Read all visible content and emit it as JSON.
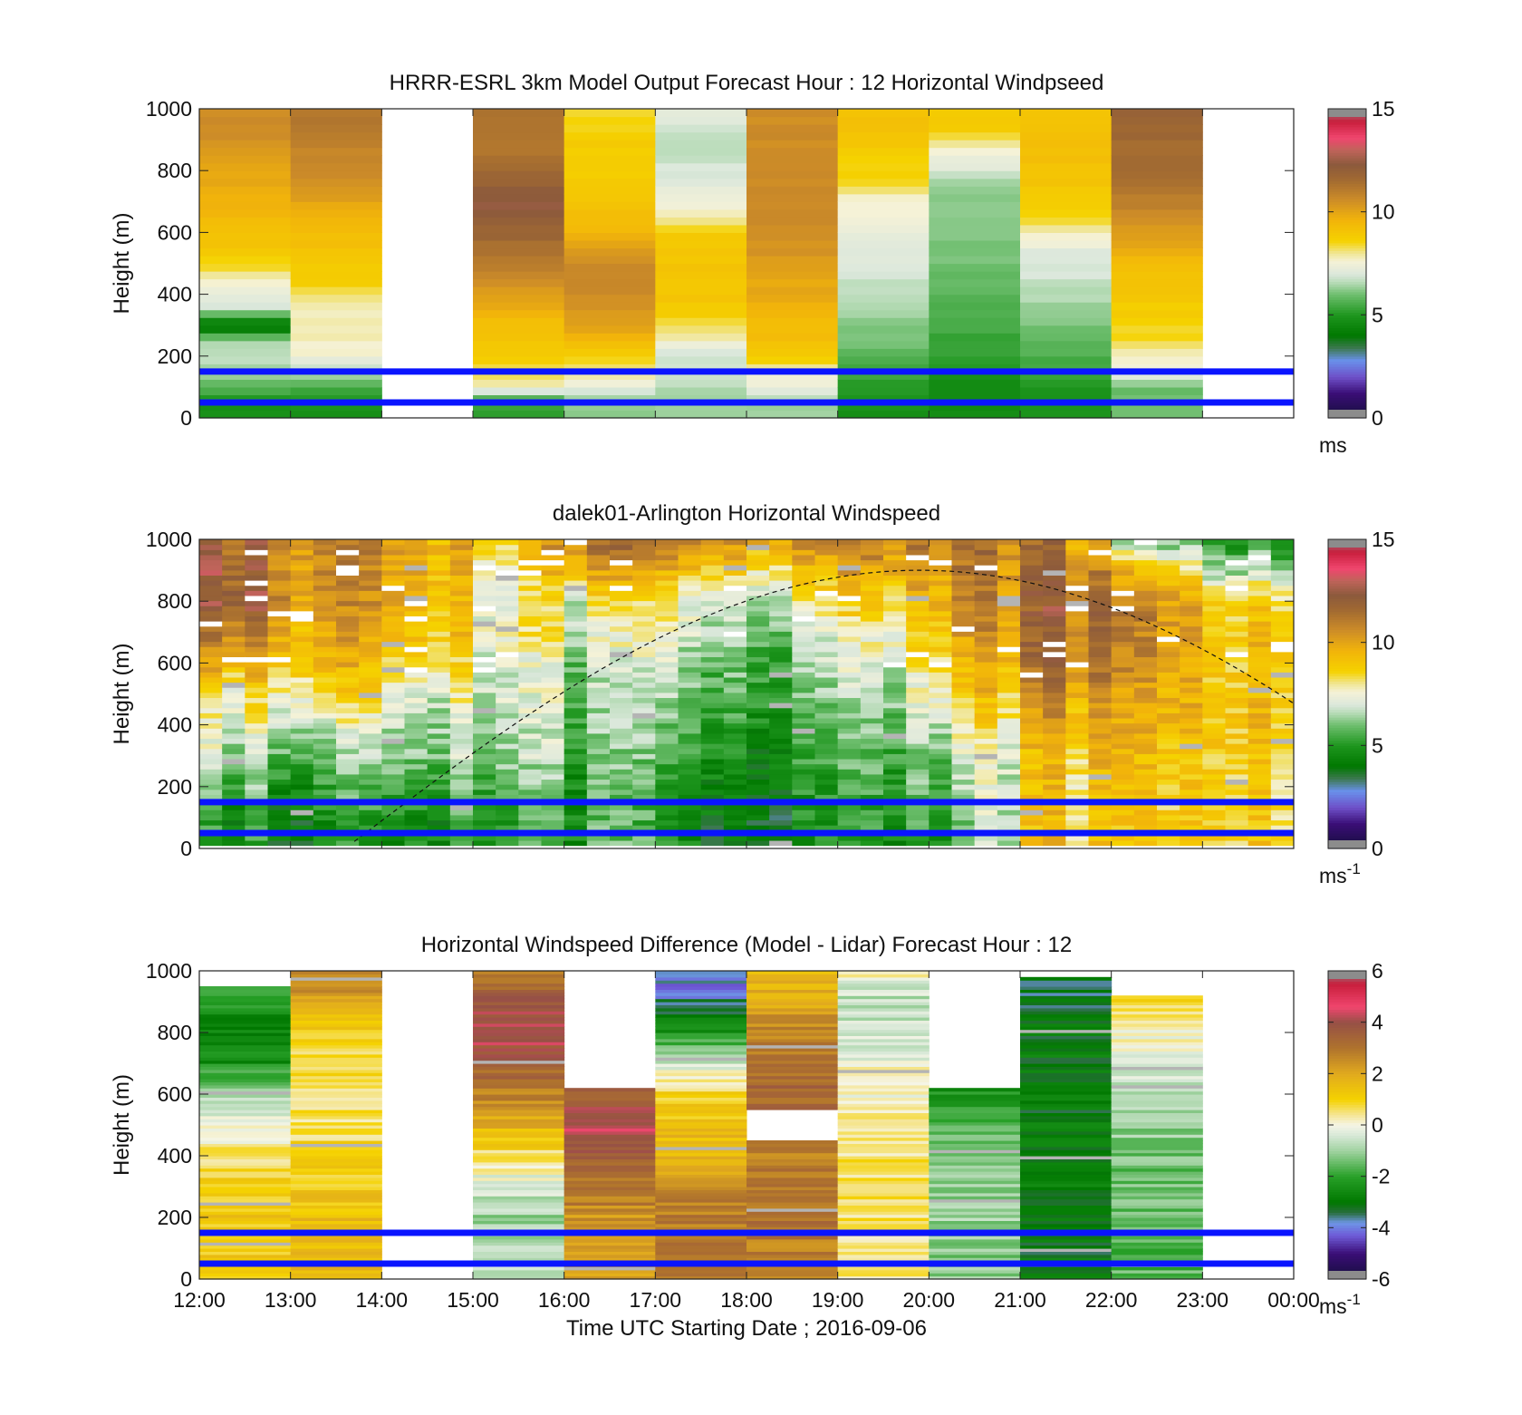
{
  "chart_data": [
    {
      "type": "heatmap",
      "id": "model",
      "title": "HRRR-ESRL 3km Model Output   Forecast Hour : 12 Horizontal Windpseed",
      "ylabel": "Height (m)",
      "ylim": [
        0,
        1000
      ],
      "yticks": [
        0,
        200,
        400,
        600,
        800,
        1000
      ],
      "xlim_hours": [
        12,
        24
      ],
      "colorbar": {
        "min": 0,
        "max": 15,
        "ticks": [
          0,
          5,
          10,
          15
        ],
        "unit": "ms"
      },
      "reference_lines_m": [
        150,
        50
      ],
      "hour_bins": [
        12,
        13,
        14,
        15,
        16,
        17,
        18,
        19,
        20,
        21,
        22,
        23
      ],
      "heights_m": [
        50,
        100,
        150,
        200,
        250,
        300,
        350,
        400,
        450,
        500,
        550,
        600,
        650,
        700,
        750,
        800,
        850,
        900,
        950,
        1000
      ],
      "profiles_ms": [
        [
          4.8,
          5.6,
          6.5,
          6.6,
          6.4,
          3.6,
          6.8,
          7.4,
          7.6,
          8.6,
          9.0,
          9.2,
          9.4,
          9.6,
          9.8,
          10.0,
          10.2,
          10.4,
          10.6,
          10.6
        ],
        [
          4.8,
          5.6,
          6.5,
          7.6,
          7.8,
          7.8,
          7.8,
          8.2,
          8.8,
          9.0,
          9.2,
          9.4,
          9.6,
          10.0,
          10.4,
          10.6,
          10.8,
          11.0,
          11.2,
          11.2
        ],
        [
          null,
          null,
          null,
          null,
          null,
          null,
          null,
          null,
          null,
          null,
          null,
          null,
          null,
          null,
          null,
          null,
          null,
          null,
          null,
          null
        ],
        [
          5.2,
          7.6,
          8.4,
          8.8,
          9.0,
          9.2,
          9.6,
          10.2,
          10.6,
          11.0,
          11.4,
          11.8,
          12.2,
          12.4,
          12.0,
          11.6,
          11.4,
          11.2,
          11.2,
          11.2
        ],
        [
          6.2,
          7.4,
          8.0,
          8.6,
          9.4,
          10.0,
          10.4,
          10.6,
          10.8,
          10.6,
          10.2,
          9.6,
          9.2,
          9.0,
          8.8,
          8.8,
          8.8,
          8.8,
          8.6,
          8.4
        ],
        [
          6.5,
          6.6,
          6.8,
          6.9,
          7.6,
          8.4,
          8.8,
          9.0,
          9.0,
          9.0,
          9.0,
          8.8,
          7.8,
          7.4,
          7.2,
          7.0,
          6.8,
          6.6,
          7.0,
          7.2
        ],
        [
          6.4,
          7.4,
          7.6,
          8.8,
          9.2,
          9.4,
          9.6,
          9.8,
          10.0,
          10.2,
          10.4,
          10.4,
          10.6,
          10.6,
          10.6,
          10.6,
          10.6,
          10.6,
          10.6,
          10.6
        ],
        [
          4.8,
          5.0,
          5.4,
          5.8,
          6.0,
          6.2,
          6.4,
          6.6,
          6.8,
          7.0,
          7.2,
          7.4,
          7.6,
          7.6,
          8.4,
          8.6,
          8.8,
          9.0,
          9.2,
          9.2
        ],
        [
          4.6,
          4.6,
          5.0,
          5.2,
          5.4,
          5.4,
          5.6,
          5.8,
          5.8,
          6.0,
          6.0,
          6.2,
          6.2,
          6.2,
          6.4,
          7.0,
          7.4,
          8.4,
          8.8,
          8.8
        ],
        [
          4.8,
          4.8,
          5.4,
          5.6,
          5.8,
          6.0,
          6.4,
          6.6,
          6.8,
          7.0,
          7.2,
          7.8,
          8.4,
          8.8,
          9.0,
          9.2,
          9.2,
          9.2,
          9.2,
          9.2
        ],
        [
          6.0,
          6.0,
          7.6,
          7.8,
          8.4,
          8.6,
          8.8,
          9.0,
          9.2,
          9.4,
          9.8,
          10.2,
          10.6,
          11.0,
          11.4,
          11.6,
          11.6,
          11.6,
          11.8,
          11.8
        ],
        [
          null,
          null,
          null,
          null,
          null,
          null,
          null,
          null,
          null,
          null,
          null,
          null,
          null,
          null,
          null,
          null,
          null,
          null,
          null,
          null
        ]
      ]
    },
    {
      "type": "heatmap",
      "id": "lidar",
      "title": "dalek01-Arlington  Horizontal Windspeed",
      "ylabel": "Height (m)",
      "ylim": [
        0,
        1000
      ],
      "yticks": [
        0,
        200,
        400,
        600,
        800,
        1000
      ],
      "xlim_hours": [
        12,
        24
      ],
      "colorbar": {
        "min": 0,
        "max": 15,
        "ticks": [
          0,
          5,
          10,
          15
        ],
        "unit": "ms",
        "unit_exp": "-1"
      },
      "reference_lines_m": [
        150,
        50
      ],
      "solar_curve": {
        "peak_hour": 19.9,
        "peak_height_m": 900,
        "rise_hour": 13.6,
        "set_hour": 26.2
      },
      "bin_minutes": 15,
      "data_end_hour": 23.9,
      "heights_m": [
        100,
        200,
        300,
        400,
        500,
        600,
        700,
        800,
        900,
        1000
      ],
      "profiles_ms_hourly": [
        [
          4.8,
          5.6,
          6.6,
          7.2,
          8.0,
          9.6,
          11.0,
          12.2,
          12.0,
          11.8
        ],
        [
          4.6,
          5.2,
          6.0,
          7.0,
          8.4,
          9.2,
          9.8,
          10.2,
          10.6,
          10.6
        ],
        [
          4.8,
          5.6,
          6.2,
          6.8,
          7.4,
          8.6,
          9.4,
          9.8,
          10.0,
          10.0
        ],
        [
          5.0,
          5.8,
          6.4,
          6.6,
          7.0,
          7.0,
          7.8,
          7.4,
          8.0,
          8.8
        ],
        [
          5.2,
          5.2,
          5.6,
          5.8,
          6.0,
          6.4,
          7.0,
          7.6,
          9.6,
          11.2
        ],
        [
          4.6,
          4.8,
          5.2,
          5.6,
          6.0,
          6.4,
          7.0,
          7.6,
          9.2,
          11.4
        ],
        [
          4.6,
          4.6,
          5.0,
          5.4,
          5.8,
          6.0,
          6.4,
          7.4,
          8.6,
          10.6
        ],
        [
          4.8,
          5.0,
          5.4,
          5.8,
          6.2,
          6.8,
          7.4,
          8.4,
          9.6,
          10.8
        ],
        [
          5.6,
          6.2,
          6.6,
          7.4,
          8.2,
          9.0,
          9.6,
          10.2,
          10.6,
          11.0
        ],
        [
          8.8,
          8.8,
          9.0,
          9.6,
          10.6,
          11.2,
          11.6,
          11.6,
          11.4,
          11.2
        ],
        [
          8.6,
          8.8,
          9.0,
          9.4,
          9.8,
          10.2,
          10.6,
          10.6,
          9.0,
          6.0
        ],
        [
          8.6,
          8.6,
          8.8,
          9.0,
          9.0,
          9.0,
          9.0,
          8.8,
          6.6,
          5.0
        ]
      ]
    },
    {
      "type": "heatmap",
      "id": "difference",
      "title": "Horizontal Windspeed Difference (Model - Lidar) Forecast Hour : 12",
      "ylabel": "Height (m)",
      "xlabel": "Time UTC  Starting Date ; 2016-09-06",
      "ylim": [
        0,
        1000
      ],
      "yticks": [
        0,
        200,
        400,
        600,
        800,
        1000
      ],
      "xticks": [
        "12:00",
        "13:00",
        "14:00",
        "15:00",
        "16:00",
        "17:00",
        "18:00",
        "19:00",
        "20:00",
        "21:00",
        "22:00",
        "23:00",
        "00:00"
      ],
      "xlim_hours": [
        12,
        24
      ],
      "colorbar": {
        "min": -6,
        "max": 6,
        "ticks": [
          -6,
          -4,
          -2,
          0,
          2,
          4,
          6
        ],
        "unit": "ms",
        "unit_exp": "-1"
      },
      "reference_lines_m": [
        150,
        50
      ],
      "hour_bins": [
        12,
        13,
        14,
        15,
        16,
        17,
        18,
        19,
        20,
        21,
        22,
        23
      ],
      "data_top_m": [
        950,
        1000,
        0,
        1000,
        620,
        1000,
        1000,
        1000,
        620,
        980,
        920,
        0
      ],
      "heights_m": [
        100,
        200,
        300,
        400,
        500,
        600,
        700,
        800,
        900,
        1000
      ],
      "profiles_diff_ms": [
        [
          1.2,
          1.2,
          1.0,
          0.6,
          0.0,
          -1.0,
          -2.4,
          -2.8,
          -2.2,
          -0.8
        ],
        [
          1.6,
          1.4,
          1.2,
          1.0,
          0.6,
          0.6,
          0.8,
          1.2,
          2.0,
          3.0
        ],
        [
          null,
          null,
          null,
          null,
          null,
          null,
          null,
          null,
          null,
          null
        ],
        [
          -0.6,
          -1.0,
          -0.4,
          0.6,
          1.8,
          2.8,
          3.6,
          4.4,
          3.6,
          3.0
        ],
        [
          2.2,
          2.4,
          3.0,
          3.6,
          4.4,
          3.4,
          null,
          null,
          null,
          null
        ],
        [
          2.8,
          2.8,
          2.6,
          1.8,
          1.4,
          1.0,
          -0.6,
          -2.4,
          -3.6,
          -4.2
        ],
        [
          2.8,
          3.0,
          3.0,
          2.8,
          null,
          3.4,
          3.0,
          2.6,
          2.0,
          1.4
        ],
        [
          0.4,
          0.6,
          0.6,
          0.6,
          0.4,
          0.2,
          0.0,
          -0.6,
          -0.8,
          0.2
        ],
        [
          -1.2,
          -1.0,
          -1.0,
          -1.2,
          -1.6,
          -2.4,
          null,
          null,
          null,
          null
        ],
        [
          -3.0,
          -3.0,
          -3.0,
          -3.0,
          -3.0,
          -3.0,
          -3.0,
          -3.0,
          -3.2,
          -3.4
        ],
        [
          -1.6,
          -1.4,
          -1.4,
          -1.4,
          -1.0,
          -0.6,
          -0.2,
          0.2,
          0.8,
          1.2
        ],
        [
          null,
          null,
          null,
          null,
          null,
          null,
          null,
          null,
          null,
          null
        ]
      ]
    }
  ]
}
